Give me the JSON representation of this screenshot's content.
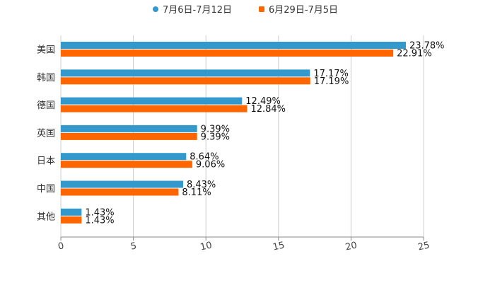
{
  "chart_data": {
    "type": "bar",
    "orientation": "horizontal",
    "categories": [
      "美国",
      "韩国",
      "德国",
      "英国",
      "日本",
      "中国",
      "其他"
    ],
    "series": [
      {
        "name": "7月6日-7月12日",
        "color": "#3399cc",
        "values": [
          23.78,
          17.17,
          12.49,
          9.39,
          8.64,
          8.43,
          1.43
        ],
        "labels": [
          "23.78%",
          "17.17%",
          "12.49%",
          "9.39%",
          "8.64%",
          "8.43%",
          "1.43%"
        ]
      },
      {
        "name": "6月29日-7月5日",
        "color": "#ff6600",
        "values": [
          22.91,
          17.19,
          12.84,
          9.39,
          9.06,
          8.11,
          1.43
        ],
        "labels": [
          "22.91%",
          "17.19%",
          "12.84%",
          "9.39%",
          "9.06%",
          "8.11%",
          "1.43%"
        ]
      }
    ],
    "xlim": [
      0,
      25
    ],
    "xticks": [
      "0",
      "5",
      "10",
      "15",
      "20",
      "25"
    ],
    "grid": true,
    "legend_position": "top-center"
  }
}
